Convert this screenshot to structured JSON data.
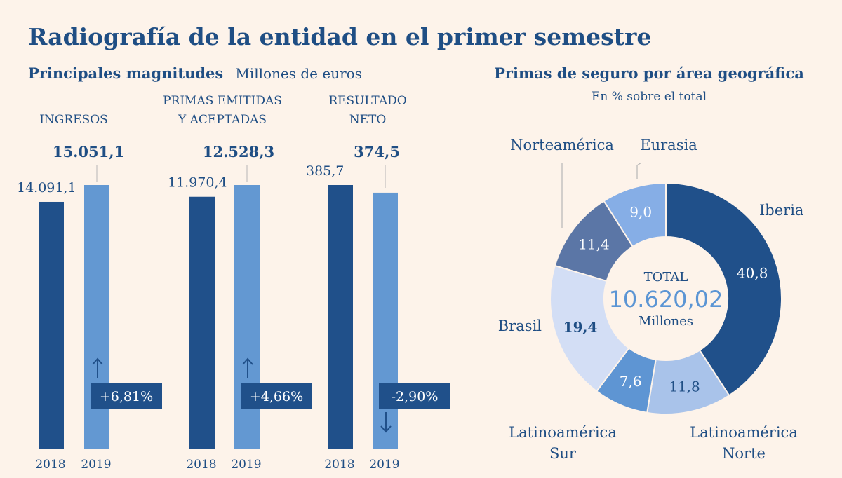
{
  "title": "Radiografía de la entidad en el primer semestre",
  "colors": {
    "dark": "#20508a",
    "light": "#6398d2",
    "text": "#1f4e84",
    "background": "#fdf3ea",
    "axis": "#b6b6b6"
  },
  "chart_data": [
    {
      "type": "bar",
      "title": "Principales magnitudes",
      "subtitle": "Millones de euros",
      "series_names": [
        "2018",
        "2019"
      ],
      "groups": [
        {
          "label_lines": [
            "INGRESOS"
          ],
          "values": [
            14091.1,
            15051.1
          ],
          "value_labels": [
            "14.091,1",
            "15.051,1"
          ],
          "change": "+6,81%",
          "direction": "up",
          "ylim": [
            0,
            15051.1
          ]
        },
        {
          "label_lines": [
            "PRIMAS EMITIDAS",
            "Y ACEPTADAS"
          ],
          "values": [
            11970.4,
            12528.3
          ],
          "value_labels": [
            "11.970,4",
            "12.528,3"
          ],
          "change": "+4,66%",
          "direction": "up",
          "ylim": [
            0,
            12528.3
          ]
        },
        {
          "label_lines": [
            "RESULTADO",
            "NETO"
          ],
          "values": [
            385.7,
            374.5
          ],
          "value_labels": [
            "385,7",
            "374,5"
          ],
          "change": "-2,90%",
          "direction": "down",
          "ylim": [
            0,
            385.7
          ]
        }
      ]
    },
    {
      "type": "pie",
      "title": "Primas de seguro por área geográfica",
      "subtitle": "En % sobre el total",
      "center": {
        "label": "TOTAL",
        "value": "10.620,02",
        "unit": "Millones"
      },
      "slices": [
        {
          "name_lines": [
            "Iberia"
          ],
          "value": 40.8,
          "value_label": "40,8",
          "color": "#20508a"
        },
        {
          "name_lines": [
            "Latinoamérica",
            "Norte"
          ],
          "value": 11.8,
          "value_label": "11,8",
          "color": "#a9c3ea"
        },
        {
          "name_lines": [
            "Latinoamérica",
            "Sur"
          ],
          "value": 7.6,
          "value_label": "7,6",
          "color": "#5e95d3"
        },
        {
          "name_lines": [
            "Brasil"
          ],
          "value": 19.4,
          "value_label": "19,4",
          "color": "#d3def5"
        },
        {
          "name_lines": [
            "Norteamérica"
          ],
          "value": 11.4,
          "value_label": "11,4",
          "color": "#5b76a6"
        },
        {
          "name_lines": [
            "Eurasia"
          ],
          "value": 9.0,
          "value_label": "9,0",
          "color": "#86aee6"
        }
      ]
    }
  ]
}
